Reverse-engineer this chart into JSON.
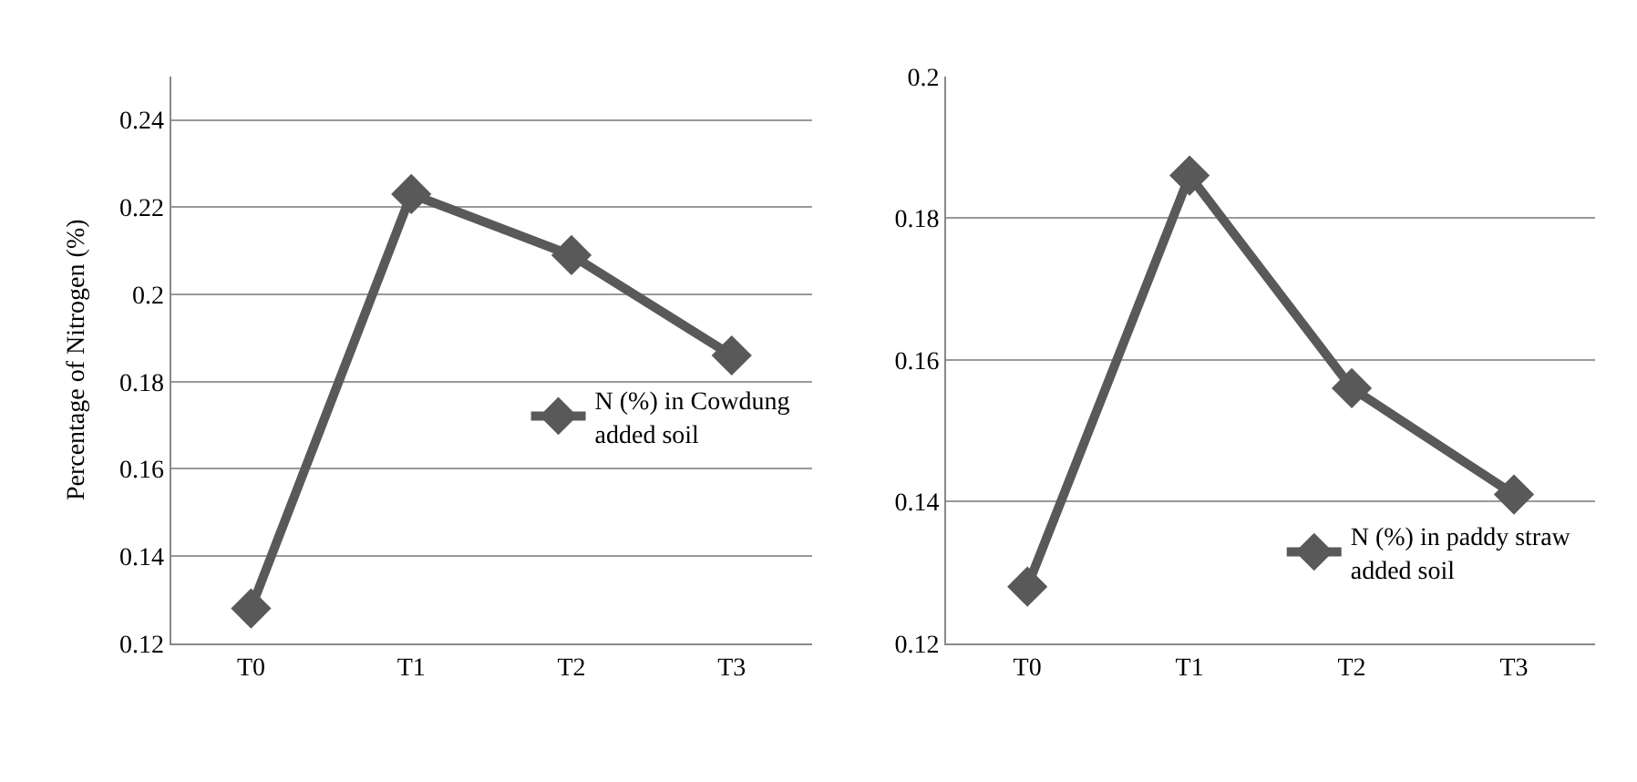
{
  "chart_data": [
    {
      "type": "line",
      "ylabel": "Percentage of Nitrogen (%)",
      "categories": [
        "T0",
        "T1",
        "T2",
        "T3"
      ],
      "series": [
        {
          "name": "N (%) in Cowdung added soil",
          "color": "#595959",
          "values": [
            0.128,
            0.223,
            0.209,
            0.186
          ]
        }
      ],
      "ylim": [
        0.12,
        0.25
      ],
      "yticks": [
        0.12,
        0.14,
        0.16,
        0.18,
        0.2,
        0.22,
        0.24
      ],
      "grid": "y",
      "legend": "right",
      "marker": "diamond",
      "line_style": "solid"
    },
    {
      "type": "line",
      "categories": [
        "T0",
        "T1",
        "T2",
        "T3"
      ],
      "series": [
        {
          "name": "N (%) in paddy straw added soil",
          "color": "#595959",
          "values": [
            0.128,
            0.186,
            0.156,
            0.141
          ]
        }
      ],
      "ylim": [
        0.12,
        0.2
      ],
      "yticks": [
        0.12,
        0.14,
        0.16,
        0.18,
        0.2
      ],
      "grid": "y",
      "legend": "bottom right",
      "marker": "diamond",
      "line_style": "solid"
    }
  ]
}
